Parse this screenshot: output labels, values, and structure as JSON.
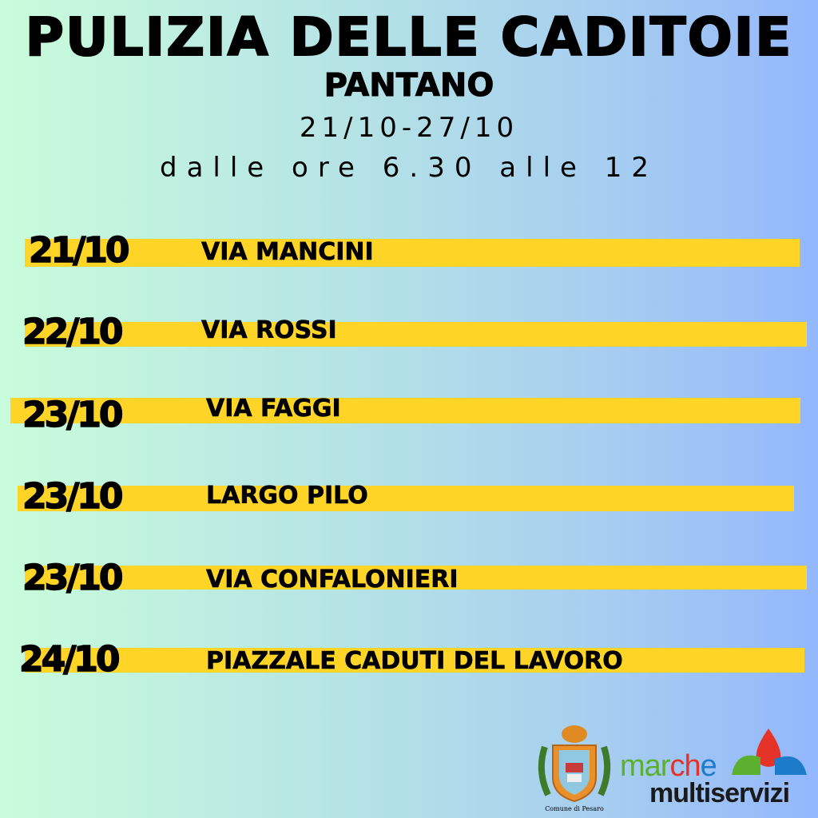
{
  "header": {
    "title": "PULIZIA DELLE CADITOIE",
    "subtitle": "PANTANO",
    "date_range": "21/10-27/10",
    "hours": "dalle ore 6.30 alle 12"
  },
  "schedule": [
    {
      "date": "21/10",
      "street": "VIA MANCINI"
    },
    {
      "date": "22/10",
      "street": "VIA ROSSI"
    },
    {
      "date": "23/10",
      "street": "VIA FAGGI"
    },
    {
      "date": "23/10",
      "street": "LARGO PILO"
    },
    {
      "date": "23/10",
      "street": "VIA CONFALONIERI"
    },
    {
      "date": "24/10",
      "street": "PIAZZALE CADUTI DEL LAVORO"
    }
  ],
  "footer": {
    "pesaro_caption": "Comune di Pesaro",
    "brand_top": "marche",
    "brand_bottom": "multiservizi"
  },
  "colors": {
    "highlight": "#fed527",
    "mar": "#5cb030",
    "ch": "#e5332a",
    "e": "#1c7cc9"
  }
}
